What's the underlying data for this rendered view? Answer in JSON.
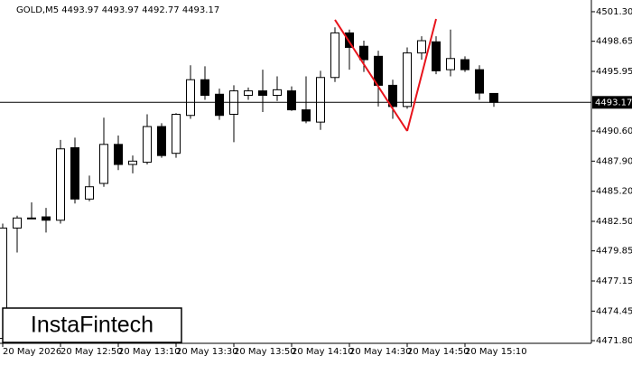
{
  "chart_data": {
    "type": "candlestick",
    "title": "GOLD,M5  4493.97 4493.97 4492.77 4493.17",
    "categories": [
      "20 May 2026",
      null,
      null,
      null,
      "20 May 12:50",
      null,
      null,
      null,
      "20 May 13:10",
      null,
      null,
      null,
      "20 May 13:30",
      null,
      null,
      null,
      "20 May 13:50",
      null,
      null,
      null,
      "20 May 14:10",
      null,
      null,
      null,
      "20 May 14:30",
      null,
      null,
      null,
      "20 May 14:50",
      null,
      null,
      null,
      "20 May 15:10",
      null,
      null
    ],
    "open": [
      4472.0,
      4481.9,
      4482.8,
      4482.9,
      4482.6,
      4489.1,
      4484.5,
      4485.9,
      4489.4,
      4487.6,
      4487.8,
      4491.0,
      4488.6,
      4492.0,
      4495.2,
      4493.9,
      4492.1,
      4493.8,
      4494.2,
      4493.8,
      4494.2,
      4492.5,
      4491.4,
      4495.4,
      4499.4,
      4498.2,
      4497.3,
      4494.7,
      4492.8,
      4497.6,
      4498.6,
      4496.1,
      4497.0,
      4496.1,
      4493.97
    ],
    "high": [
      4482.3,
      4483.0,
      4484.2,
      4483.7,
      4489.8,
      4490.0,
      4486.6,
      4491.8,
      4490.2,
      4488.4,
      4492.1,
      4491.3,
      4492.2,
      4496.5,
      4496.4,
      4494.4,
      4494.7,
      4494.5,
      4496.1,
      4495.5,
      4494.6,
      4495.5,
      4496.0,
      4499.9,
      4499.7,
      4498.7,
      4497.8,
      4495.2,
      4498.1,
      4499.1,
      4499.1,
      4499.7,
      4497.3,
      4496.5,
      4493.97
    ],
    "low": [
      4471.8,
      4479.7,
      4482.7,
      4481.5,
      4482.3,
      4484.1,
      4484.3,
      4485.6,
      4487.1,
      4486.8,
      4487.6,
      4488.2,
      4488.2,
      4491.7,
      4493.4,
      4491.6,
      4489.6,
      4493.4,
      4492.3,
      4493.3,
      4492.4,
      4491.3,
      4490.7,
      4495.0,
      4496.1,
      4495.9,
      4492.8,
      4491.7,
      4492.6,
      4497.0,
      4495.7,
      4495.5,
      4495.9,
      4493.4,
      4492.77
    ],
    "close": [
      4481.9,
      4482.8,
      4482.8,
      4482.6,
      4489.0,
      4484.5,
      4485.6,
      4489.4,
      4487.6,
      4487.9,
      4491.0,
      4488.4,
      4492.1,
      4495.2,
      4493.8,
      4492.0,
      4494.2,
      4494.2,
      4493.8,
      4494.3,
      4492.5,
      4491.5,
      4495.4,
      4499.4,
      4498.1,
      4497.0,
      4494.7,
      4492.8,
      4497.6,
      4498.7,
      4496.0,
      4497.1,
      4496.1,
      4494.0,
      4493.17
    ],
    "ylim": [
      4471.56,
      4502.35
    ],
    "yticks": [
      {
        "value": 4501.3,
        "label": "4501.30"
      },
      4498.65,
      4495.95,
      {
        "value": 4490.6,
        "label": "4490.60"
      },
      {
        "value": 4487.9,
        "label": "4487.90"
      },
      {
        "value": 4485.2,
        "label": "4485.20"
      },
      {
        "value": 4482.5,
        "label": "4482.50"
      },
      4479.85,
      4477.15,
      4474.45,
      {
        "value": 4471.8,
        "label": "4471.80"
      }
    ],
    "current_price": 4493.17,
    "pattern": {
      "color": "#e8141c",
      "points": [
        [
          23,
          4500.57
        ],
        [
          28,
          4490.6
        ],
        [
          30,
          4500.65
        ]
      ]
    },
    "logo": "InstaFintech"
  }
}
